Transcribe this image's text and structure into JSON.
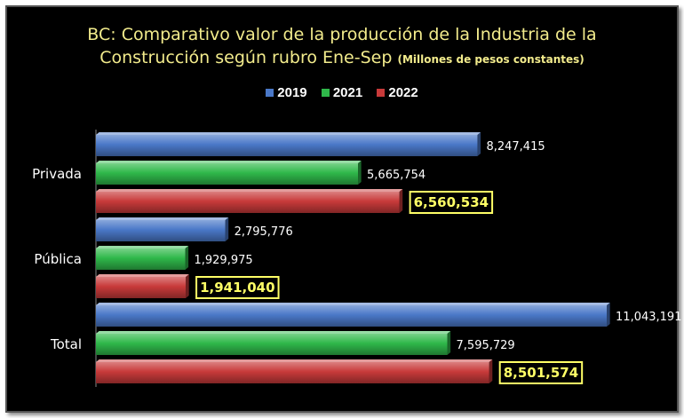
{
  "chart_data": {
    "type": "bar",
    "orientation": "horizontal",
    "title": "BC: Comparativo valor de la producción de la Industria de la Construcción según rubro Ene-Sep",
    "title_line1": "BC: Comparativo valor de la producción de la Industria de la",
    "title_line2": "Construcción según rubro Ene-Sep",
    "subtitle": "(Millones de pesos constantes)",
    "categories": [
      "Privada",
      "Pública",
      "Total"
    ],
    "series": [
      {
        "name": "2019",
        "color": "#4a78c8",
        "values": [
          8247415,
          2795776,
          11043191
        ],
        "labels": [
          "8,247,415",
          "2,795,776",
          "11,043,191"
        ],
        "highlight": false
      },
      {
        "name": "2021",
        "color": "#2fb84a",
        "values": [
          5665754,
          1929975,
          7595729
        ],
        "labels": [
          "5,665,754",
          "1,929,975",
          "7,595,729"
        ],
        "highlight": false
      },
      {
        "name": "2022",
        "color": "#c83a3a",
        "values": [
          6560534,
          1941040,
          8501574
        ],
        "labels": [
          "6,560,534",
          "1,941,040",
          "8,501,574"
        ],
        "highlight": true
      }
    ],
    "xlim": [
      0,
      11100000
    ],
    "legend_position": "top",
    "grid": false
  }
}
